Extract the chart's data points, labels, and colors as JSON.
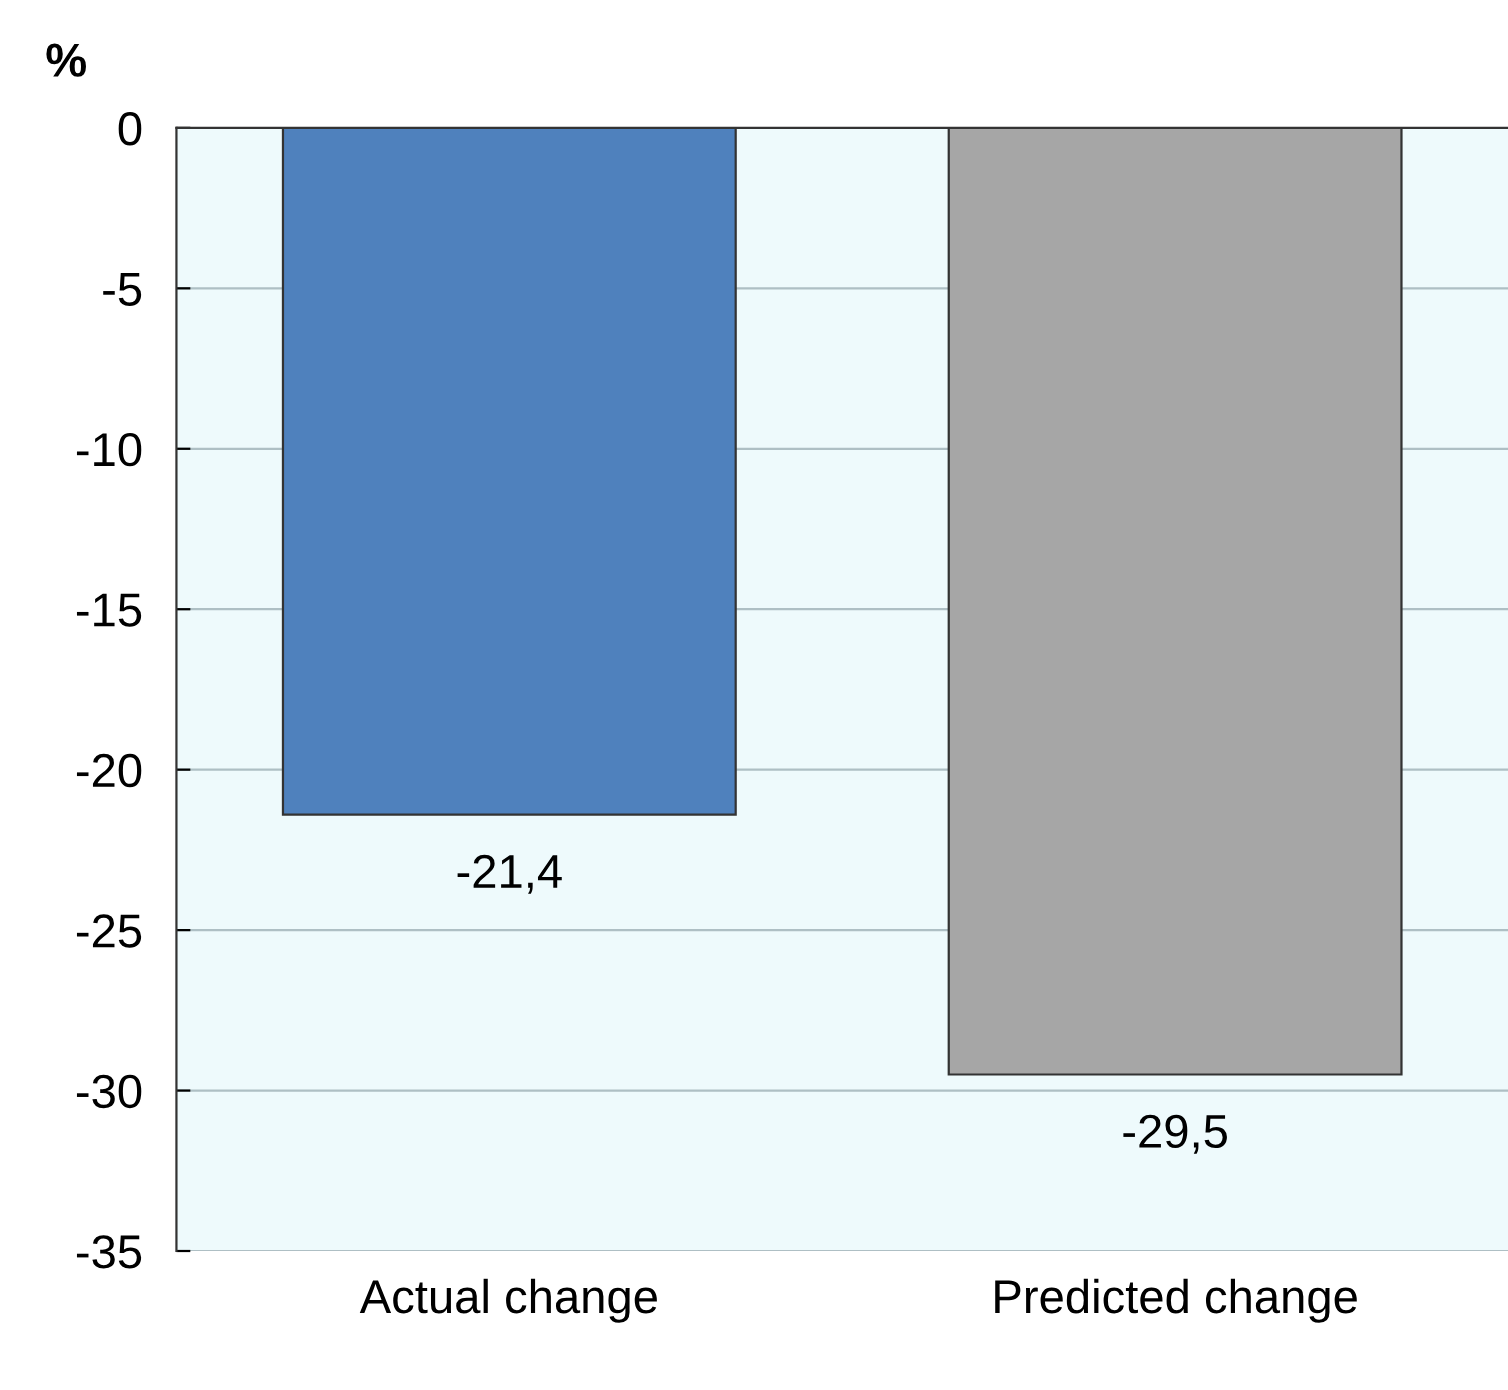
{
  "chart_data": {
    "type": "bar",
    "ylabel": "%",
    "categories": [
      "Actual change",
      "Predicted change"
    ],
    "values": [
      -21.4,
      -29.5
    ],
    "colors": [
      "#4f81bd",
      "#a6a6a6"
    ],
    "value_labels": [
      "-21,4",
      "-29,5"
    ],
    "ylim": [
      -35,
      0
    ],
    "yticks": [
      -35,
      -30,
      -25,
      -20,
      -15,
      -10,
      -5,
      0
    ],
    "grid": "y",
    "legend": false
  }
}
